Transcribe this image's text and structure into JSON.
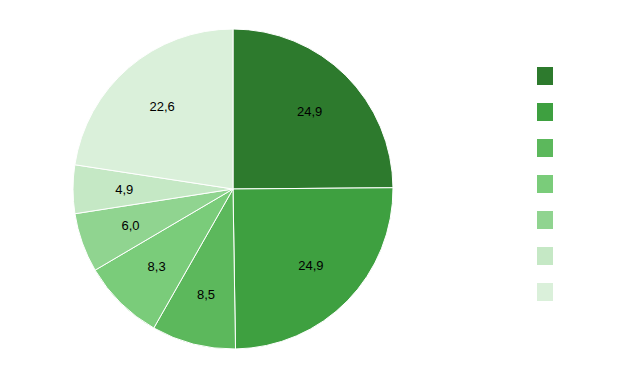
{
  "chart_data": {
    "type": "pie",
    "values": [
      24.9,
      24.9,
      8.5,
      8.3,
      6.0,
      4.9,
      22.6
    ],
    "value_labels": [
      "24,9",
      "24,9",
      "8,5",
      "8,3",
      "6,0",
      "4,9",
      "22,6"
    ],
    "colors": [
      "#2d7a2d",
      "#3ea040",
      "#5cb85c",
      "#7acc7a",
      "#90d490",
      "#c5e8c5",
      "#daf0da"
    ],
    "data_labels": true,
    "legend": "right"
  }
}
